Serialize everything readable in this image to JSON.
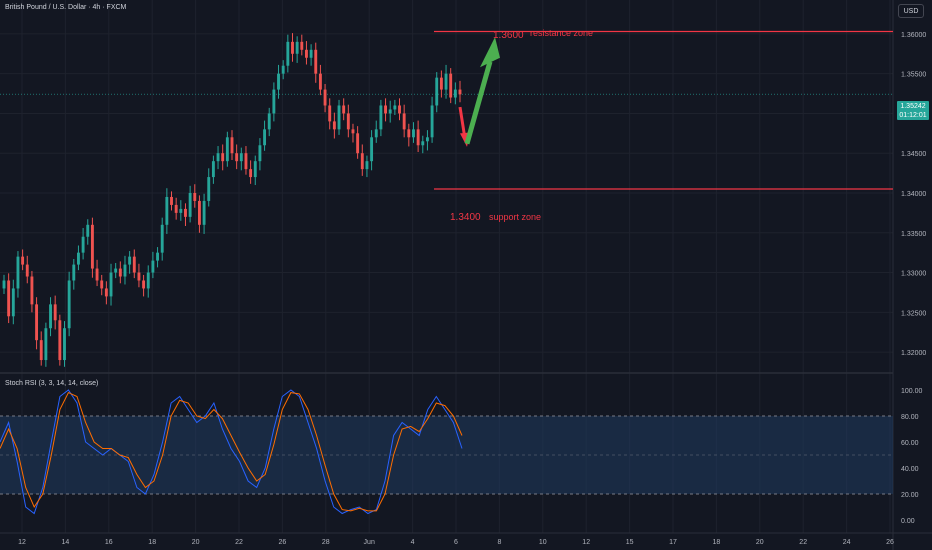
{
  "header": {
    "symbol_title": "British Pound / U.S. Dollar · 4h · FXCM",
    "currency_button": "USD"
  },
  "price_badge": {
    "price": "1.35242",
    "countdown": "01:12:01"
  },
  "price_axis": {
    "labels": [
      "1.36000",
      "1.35500",
      "1.35000",
      "1.34500",
      "1.34000",
      "1.33500",
      "1.33000",
      "1.32500",
      "1.32000"
    ],
    "min": 1.318,
    "max": 1.3625
  },
  "time_axis": {
    "labels": [
      "12",
      "14",
      "16",
      "18",
      "20",
      "22",
      "26",
      "28",
      "Jun",
      "4",
      "6",
      "8",
      "10",
      "12",
      "15",
      "17",
      "18",
      "20",
      "22",
      "24",
      "26"
    ]
  },
  "annotations": {
    "resistance_price": "1.3600",
    "resistance_label": "resistance zone",
    "support_price": "1.3400",
    "support_label": "support zone",
    "resistance_level": 1.3603,
    "support_level": 1.3405,
    "line_color": "#f23645",
    "up_arrow_color": "#4caf50",
    "down_arrow_color": "#f23645"
  },
  "indicator": {
    "title": "Stoch RSI (3, 3, 14, 14, close)",
    "scale_labels": [
      "100.00",
      "80.00",
      "60.00",
      "40.00",
      "20.00",
      "0.00"
    ],
    "upper_band": 80,
    "lower_band": 20,
    "k_color": "#2962ff",
    "d_color": "#ff6d00"
  },
  "chart_data": {
    "type": "candlestick",
    "up_color": "#26a69a",
    "down_color": "#ef5350",
    "ylim": [
      1.318,
      1.3625
    ],
    "current_price": 1.35242,
    "candles_close": [
      1.329,
      1.3245,
      1.328,
      1.332,
      1.331,
      1.3295,
      1.326,
      1.3215,
      1.319,
      1.323,
      1.326,
      1.324,
      1.319,
      1.323,
      1.329,
      1.331,
      1.3325,
      1.3345,
      1.336,
      1.3305,
      1.329,
      1.328,
      1.327,
      1.33,
      1.3305,
      1.3295,
      1.331,
      1.332,
      1.33,
      1.329,
      1.328,
      1.33,
      1.3315,
      1.3325,
      1.336,
      1.3395,
      1.3385,
      1.3375,
      1.338,
      1.337,
      1.34,
      1.339,
      1.336,
      1.339,
      1.342,
      1.344,
      1.345,
      1.344,
      1.347,
      1.345,
      1.344,
      1.345,
      1.343,
      1.342,
      1.344,
      1.346,
      1.348,
      1.35,
      1.353,
      1.355,
      1.356,
      1.359,
      1.3575,
      1.359,
      1.358,
      1.357,
      1.358,
      1.355,
      1.353,
      1.351,
      1.349,
      1.348,
      1.351,
      1.35,
      1.348,
      1.3475,
      1.345,
      1.343,
      1.344,
      1.347,
      1.348,
      1.351,
      1.35,
      1.3505,
      1.351,
      1.35,
      1.348,
      1.347,
      1.348,
      1.346,
      1.3465,
      1.347,
      1.351,
      1.3545,
      1.353,
      1.355,
      1.352,
      1.353,
      1.3524
    ],
    "k_values": [
      60,
      75,
      45,
      10,
      5,
      25,
      60,
      95,
      100,
      90,
      60,
      55,
      50,
      55,
      50,
      45,
      25,
      20,
      35,
      60,
      90,
      95,
      85,
      75,
      80,
      90,
      70,
      55,
      45,
      30,
      25,
      40,
      70,
      95,
      100,
      95,
      75,
      55,
      30,
      10,
      5,
      8,
      10,
      5,
      8,
      30,
      65,
      75,
      70,
      65,
      85,
      95,
      85,
      75,
      55
    ],
    "d_values": [
      55,
      70,
      55,
      25,
      10,
      20,
      50,
      85,
      98,
      95,
      75,
      60,
      55,
      55,
      50,
      48,
      35,
      25,
      30,
      50,
      80,
      92,
      90,
      80,
      78,
      85,
      78,
      65,
      52,
      40,
      30,
      35,
      58,
      85,
      98,
      97,
      85,
      65,
      42,
      20,
      8,
      7,
      9,
      7,
      7,
      20,
      50,
      70,
      72,
      68,
      78,
      90,
      88,
      80,
      65
    ]
  }
}
